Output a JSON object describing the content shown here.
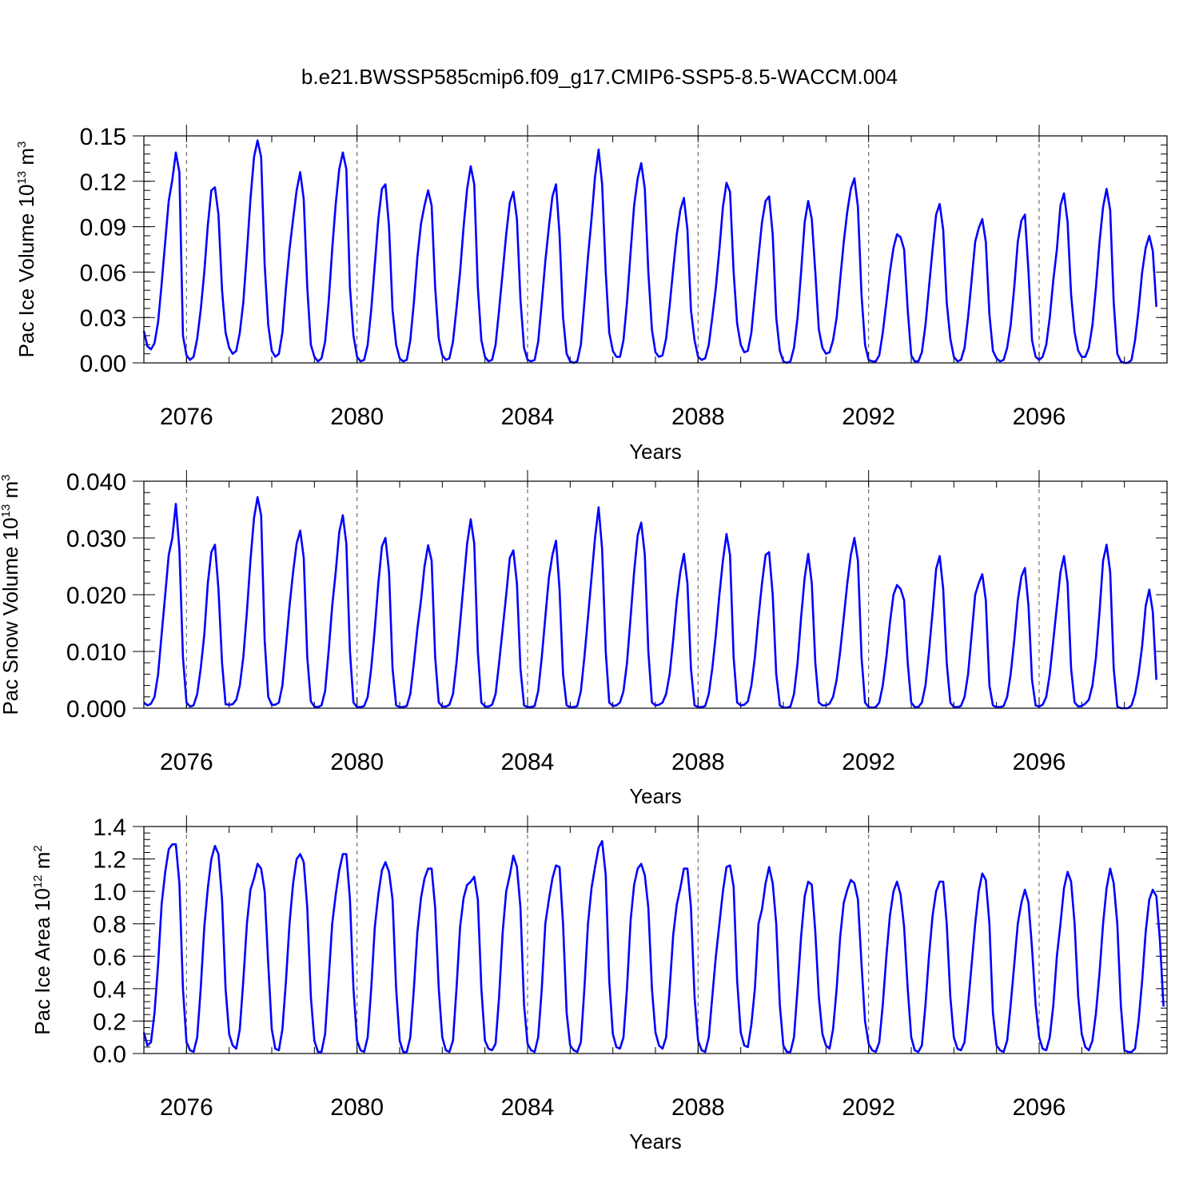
{
  "title": "b.e21.BWSSP585cmip6.f09_g17.CMIP6-SSP5-8.5-WACCM.004",
  "colors": {
    "series": "#0000ff",
    "axis": "#000000",
    "gridline": "#555555"
  },
  "chart_data": [
    {
      "type": "line",
      "ylabel": "Pac Ice Volume 10",
      "ylabel_sup": "13",
      "ylabel_unit": " m",
      "ylabel_unit_sup": "3",
      "xlabel": "Years",
      "xlim": [
        2075.0,
        2099.0
      ],
      "ylim": [
        0.0,
        0.15
      ],
      "yticks": [
        "0.00",
        "0.03",
        "0.06",
        "0.09",
        "0.12",
        "0.15"
      ],
      "ytick_values": [
        0.0,
        0.03,
        0.06,
        0.09,
        0.12,
        0.15
      ],
      "xticks": [
        "2076",
        "2080",
        "2084",
        "2088",
        "2092",
        "2096"
      ],
      "xtick_values": [
        2076,
        2080,
        2084,
        2088,
        2092,
        2096
      ],
      "dashed_year_lines": [
        2076,
        2080,
        2084,
        2088,
        2092,
        2096
      ],
      "grid": false,
      "series": [
        {
          "start_year": 2075.0,
          "step": 0.0833333,
          "values": [
            0.021,
            0.011,
            0.009,
            0.013,
            0.027,
            0.052,
            0.08,
            0.107,
            0.121,
            0.139,
            0.126,
            0.018,
            0.005,
            0.002,
            0.004,
            0.016,
            0.035,
            0.06,
            0.091,
            0.114,
            0.116,
            0.098,
            0.048,
            0.02,
            0.01,
            0.006,
            0.008,
            0.02,
            0.04,
            0.073,
            0.108,
            0.136,
            0.147,
            0.136,
            0.065,
            0.025,
            0.008,
            0.004,
            0.006,
            0.02,
            0.05,
            0.075,
            0.095,
            0.114,
            0.126,
            0.108,
            0.05,
            0.012,
            0.004,
            0.001,
            0.003,
            0.014,
            0.04,
            0.075,
            0.105,
            0.128,
            0.139,
            0.128,
            0.05,
            0.018,
            0.004,
            0.001,
            0.002,
            0.012,
            0.035,
            0.065,
            0.095,
            0.115,
            0.118,
            0.09,
            0.035,
            0.012,
            0.003,
            0.001,
            0.002,
            0.015,
            0.04,
            0.07,
            0.092,
            0.104,
            0.114,
            0.104,
            0.05,
            0.016,
            0.005,
            0.002,
            0.003,
            0.014,
            0.036,
            0.06,
            0.09,
            0.115,
            0.13,
            0.118,
            0.05,
            0.015,
            0.004,
            0.001,
            0.002,
            0.012,
            0.035,
            0.06,
            0.085,
            0.106,
            0.113,
            0.095,
            0.042,
            0.01,
            0.002,
            0.001,
            0.002,
            0.014,
            0.04,
            0.067,
            0.09,
            0.11,
            0.118,
            0.085,
            0.03,
            0.006,
            0.001,
            0.0,
            0.001,
            0.012,
            0.04,
            0.07,
            0.095,
            0.123,
            0.141,
            0.118,
            0.06,
            0.02,
            0.008,
            0.004,
            0.004,
            0.015,
            0.04,
            0.073,
            0.104,
            0.122,
            0.132,
            0.115,
            0.06,
            0.022,
            0.007,
            0.004,
            0.005,
            0.016,
            0.038,
            0.062,
            0.085,
            0.101,
            0.109,
            0.088,
            0.035,
            0.015,
            0.004,
            0.002,
            0.003,
            0.012,
            0.03,
            0.05,
            0.075,
            0.103,
            0.119,
            0.113,
            0.06,
            0.026,
            0.012,
            0.007,
            0.008,
            0.02,
            0.045,
            0.07,
            0.093,
            0.107,
            0.11,
            0.085,
            0.03,
            0.008,
            0.001,
            0.0,
            0.001,
            0.01,
            0.03,
            0.06,
            0.093,
            0.107,
            0.095,
            0.06,
            0.022,
            0.01,
            0.006,
            0.007,
            0.015,
            0.03,
            0.055,
            0.08,
            0.1,
            0.115,
            0.122,
            0.103,
            0.045,
            0.012,
            0.002,
            0.001,
            0.001,
            0.005,
            0.02,
            0.04,
            0.06,
            0.076,
            0.085,
            0.083,
            0.075,
            0.035,
            0.005,
            0.001,
            0.001,
            0.007,
            0.025,
            0.05,
            0.075,
            0.098,
            0.105,
            0.088,
            0.04,
            0.016,
            0.004,
            0.001,
            0.002,
            0.01,
            0.03,
            0.055,
            0.08,
            0.089,
            0.095,
            0.08,
            0.032,
            0.008,
            0.003,
            0.001,
            0.002,
            0.01,
            0.025,
            0.05,
            0.08,
            0.094,
            0.098,
            0.06,
            0.015,
            0.004,
            0.002,
            0.004,
            0.012,
            0.03,
            0.055,
            0.075,
            0.104,
            0.112,
            0.093,
            0.045,
            0.02,
            0.008,
            0.004,
            0.004,
            0.01,
            0.025,
            0.05,
            0.08,
            0.103,
            0.115,
            0.101,
            0.04,
            0.006,
            0.001,
            0.0,
            0.0,
            0.002,
            0.015,
            0.035,
            0.06,
            0.076,
            0.084,
            0.074,
            0.037
          ]
        }
      ]
    },
    {
      "type": "line",
      "ylabel": "Pac Snow Volume 10",
      "ylabel_sup": "13",
      "ylabel_unit": " m",
      "ylabel_unit_sup": "3",
      "xlabel": "Years",
      "xlim": [
        2075.0,
        2099.0
      ],
      "ylim": [
        0.0,
        0.04
      ],
      "yticks": [
        "0.000",
        "0.010",
        "0.020",
        "0.030",
        "0.040"
      ],
      "ytick_values": [
        0.0,
        0.01,
        0.02,
        0.03,
        0.04
      ],
      "xticks": [
        "2076",
        "2080",
        "2084",
        "2088",
        "2092",
        "2096"
      ],
      "xtick_values": [
        2076,
        2080,
        2084,
        2088,
        2092,
        2096
      ],
      "dashed_year_lines": [
        2076,
        2080,
        2084,
        2088,
        2092,
        2096
      ],
      "grid": false,
      "series": [
        {
          "start_year": 2075.0,
          "step": 0.0833333,
          "values": [
            0.001,
            0.0005,
            0.0008,
            0.002,
            0.006,
            0.013,
            0.02,
            0.027,
            0.03,
            0.036,
            0.028,
            0.009,
            0.001,
            0.0003,
            0.0005,
            0.0025,
            0.007,
            0.013,
            0.022,
            0.0275,
            0.0288,
            0.021,
            0.008,
            0.0007,
            0.0006,
            0.0007,
            0.0015,
            0.004,
            0.009,
            0.017,
            0.026,
            0.0335,
            0.0372,
            0.034,
            0.012,
            0.002,
            0.0006,
            0.0006,
            0.001,
            0.004,
            0.011,
            0.018,
            0.024,
            0.029,
            0.0313,
            0.0265,
            0.009,
            0.0012,
            0.0003,
            0.0002,
            0.0005,
            0.003,
            0.01,
            0.018,
            0.024,
            0.031,
            0.034,
            0.029,
            0.01,
            0.001,
            0.0002,
            0.0002,
            0.0004,
            0.002,
            0.007,
            0.014,
            0.022,
            0.0285,
            0.03,
            0.024,
            0.007,
            0.0005,
            0.0002,
            0.0002,
            0.0004,
            0.0025,
            0.008,
            0.014,
            0.019,
            0.025,
            0.0287,
            0.026,
            0.009,
            0.001,
            0.0003,
            0.0003,
            0.0006,
            0.0025,
            0.008,
            0.015,
            0.022,
            0.029,
            0.0333,
            0.029,
            0.01,
            0.001,
            0.0003,
            0.0003,
            0.0006,
            0.0025,
            0.008,
            0.014,
            0.02,
            0.0265,
            0.0278,
            0.022,
            0.007,
            0.0005,
            0.0002,
            0.0002,
            0.0004,
            0.003,
            0.009,
            0.016,
            0.023,
            0.027,
            0.0295,
            0.021,
            0.006,
            0.0005,
            0.0002,
            0.0002,
            0.0004,
            0.003,
            0.009,
            0.016,
            0.023,
            0.03,
            0.0354,
            0.028,
            0.01,
            0.001,
            0.0004,
            0.0005,
            0.001,
            0.003,
            0.008,
            0.016,
            0.024,
            0.0305,
            0.0327,
            0.027,
            0.01,
            0.001,
            0.0005,
            0.0006,
            0.001,
            0.0025,
            0.006,
            0.012,
            0.019,
            0.024,
            0.0272,
            0.022,
            0.007,
            0.0005,
            0.0002,
            0.0002,
            0.0004,
            0.0025,
            0.007,
            0.013,
            0.02,
            0.026,
            0.0307,
            0.027,
            0.009,
            0.001,
            0.0005,
            0.0006,
            0.0012,
            0.004,
            0.009,
            0.016,
            0.022,
            0.027,
            0.0275,
            0.02,
            0.006,
            0.0005,
            0.0001,
            0.0001,
            0.0003,
            0.0025,
            0.008,
            0.016,
            0.023,
            0.0272,
            0.022,
            0.008,
            0.001,
            0.0005,
            0.0005,
            0.0008,
            0.002,
            0.005,
            0.01,
            0.016,
            0.022,
            0.027,
            0.03,
            0.026,
            0.009,
            0.001,
            0.0002,
            0.0001,
            0.0002,
            0.001,
            0.004,
            0.009,
            0.015,
            0.02,
            0.0217,
            0.021,
            0.019,
            0.008,
            0.001,
            0.0002,
            0.0002,
            0.001,
            0.004,
            0.01,
            0.017,
            0.0245,
            0.0268,
            0.021,
            0.008,
            0.001,
            0.0002,
            0.0002,
            0.0004,
            0.002,
            0.006,
            0.013,
            0.02,
            0.022,
            0.0236,
            0.019,
            0.004,
            0.0005,
            0.0002,
            0.0002,
            0.0004,
            0.002,
            0.006,
            0.012,
            0.019,
            0.0232,
            0.0247,
            0.018,
            0.005,
            0.0005,
            0.0003,
            0.0006,
            0.002,
            0.006,
            0.012,
            0.018,
            0.024,
            0.0268,
            0.022,
            0.007,
            0.001,
            0.0003,
            0.0004,
            0.0008,
            0.0015,
            0.004,
            0.009,
            0.017,
            0.026,
            0.0288,
            0.024,
            0.007,
            0.0003,
            0.0,
            0.0,
            0.0,
            0.0005,
            0.0025,
            0.006,
            0.011,
            0.018,
            0.0209,
            0.017,
            0.005
          ]
        }
      ]
    },
    {
      "type": "line",
      "ylabel": "Pac Ice Area 10",
      "ylabel_sup": "12",
      "ylabel_unit": " m",
      "ylabel_unit_sup": "2",
      "xlabel": "Years",
      "xlim": [
        2075.0,
        2099.0
      ],
      "ylim": [
        0.0,
        1.4
      ],
      "yticks": [
        "0.0",
        "0.2",
        "0.4",
        "0.6",
        "0.8",
        "1.0",
        "1.2",
        "1.4"
      ],
      "ytick_values": [
        0.0,
        0.2,
        0.4,
        0.6,
        0.8,
        1.0,
        1.2,
        1.4
      ],
      "xticks": [
        "2076",
        "2080",
        "2084",
        "2088",
        "2092",
        "2096"
      ],
      "xtick_values": [
        2076,
        2080,
        2084,
        2088,
        2092,
        2096
      ],
      "dashed_year_lines": [
        2076,
        2080,
        2084,
        2088,
        2092,
        2096
      ],
      "grid": false,
      "series": [
        {
          "start_year": 2075.0,
          "step": 0.0833333,
          "values": [
            0.13,
            0.05,
            0.07,
            0.25,
            0.55,
            0.92,
            1.12,
            1.26,
            1.29,
            1.29,
            1.05,
            0.4,
            0.07,
            0.02,
            0.01,
            0.1,
            0.4,
            0.78,
            1.02,
            1.2,
            1.28,
            1.23,
            0.95,
            0.4,
            0.12,
            0.05,
            0.03,
            0.15,
            0.45,
            0.8,
            1.01,
            1.08,
            1.17,
            1.14,
            1.0,
            0.55,
            0.15,
            0.03,
            0.02,
            0.15,
            0.45,
            0.8,
            1.05,
            1.2,
            1.23,
            1.18,
            0.9,
            0.35,
            0.08,
            0.01,
            0.01,
            0.12,
            0.45,
            0.8,
            0.98,
            1.13,
            1.23,
            1.23,
            0.95,
            0.4,
            0.08,
            0.02,
            0.01,
            0.1,
            0.4,
            0.78,
            0.98,
            1.13,
            1.18,
            1.12,
            0.95,
            0.4,
            0.08,
            0.01,
            0.01,
            0.1,
            0.4,
            0.75,
            0.96,
            1.08,
            1.14,
            1.14,
            0.9,
            0.4,
            0.1,
            0.02,
            0.01,
            0.08,
            0.4,
            0.78,
            0.96,
            1.04,
            1.06,
            1.09,
            0.95,
            0.4,
            0.08,
            0.03,
            0.02,
            0.06,
            0.35,
            0.75,
            1.0,
            1.1,
            1.22,
            1.15,
            0.9,
            0.3,
            0.06,
            0.02,
            0.01,
            0.1,
            0.4,
            0.8,
            0.95,
            1.08,
            1.16,
            1.15,
            0.8,
            0.25,
            0.05,
            0.02,
            0.01,
            0.07,
            0.4,
            0.8,
            1.02,
            1.15,
            1.27,
            1.31,
            1.1,
            0.45,
            0.12,
            0.04,
            0.03,
            0.1,
            0.4,
            0.82,
            1.04,
            1.14,
            1.17,
            1.1,
            0.9,
            0.4,
            0.13,
            0.05,
            0.03,
            0.1,
            0.4,
            0.73,
            0.92,
            1.02,
            1.14,
            1.14,
            0.9,
            0.35,
            0.08,
            0.02,
            0.01,
            0.1,
            0.35,
            0.6,
            0.8,
            1.0,
            1.15,
            1.16,
            1.03,
            0.45,
            0.13,
            0.05,
            0.04,
            0.18,
            0.4,
            0.8,
            0.89,
            1.05,
            1.15,
            1.05,
            0.8,
            0.3,
            0.05,
            0.01,
            0.01,
            0.1,
            0.4,
            0.72,
            0.97,
            1.06,
            1.04,
            0.75,
            0.35,
            0.12,
            0.05,
            0.03,
            0.15,
            0.4,
            0.72,
            0.93,
            1.01,
            1.07,
            1.05,
            0.95,
            0.55,
            0.2,
            0.06,
            0.02,
            0.01,
            0.07,
            0.3,
            0.6,
            0.85,
            1.0,
            1.06,
            0.98,
            0.78,
            0.4,
            0.1,
            0.02,
            0.01,
            0.05,
            0.3,
            0.6,
            0.85,
            1.0,
            1.06,
            1.06,
            0.8,
            0.35,
            0.1,
            0.03,
            0.02,
            0.07,
            0.3,
            0.55,
            0.8,
            1.0,
            1.11,
            1.07,
            0.8,
            0.25,
            0.05,
            0.02,
            0.01,
            0.08,
            0.3,
            0.55,
            0.8,
            0.93,
            1.01,
            0.93,
            0.65,
            0.3,
            0.1,
            0.03,
            0.02,
            0.1,
            0.3,
            0.6,
            0.8,
            1.02,
            1.12,
            1.06,
            0.8,
            0.35,
            0.12,
            0.04,
            0.02,
            0.08,
            0.25,
            0.5,
            0.8,
            1.02,
            1.14,
            1.05,
            0.8,
            0.3,
            0.02,
            0.01,
            0.01,
            0.03,
            0.2,
            0.45,
            0.75,
            0.95,
            1.01,
            0.97,
            0.7,
            0.29
          ]
        }
      ]
    }
  ]
}
